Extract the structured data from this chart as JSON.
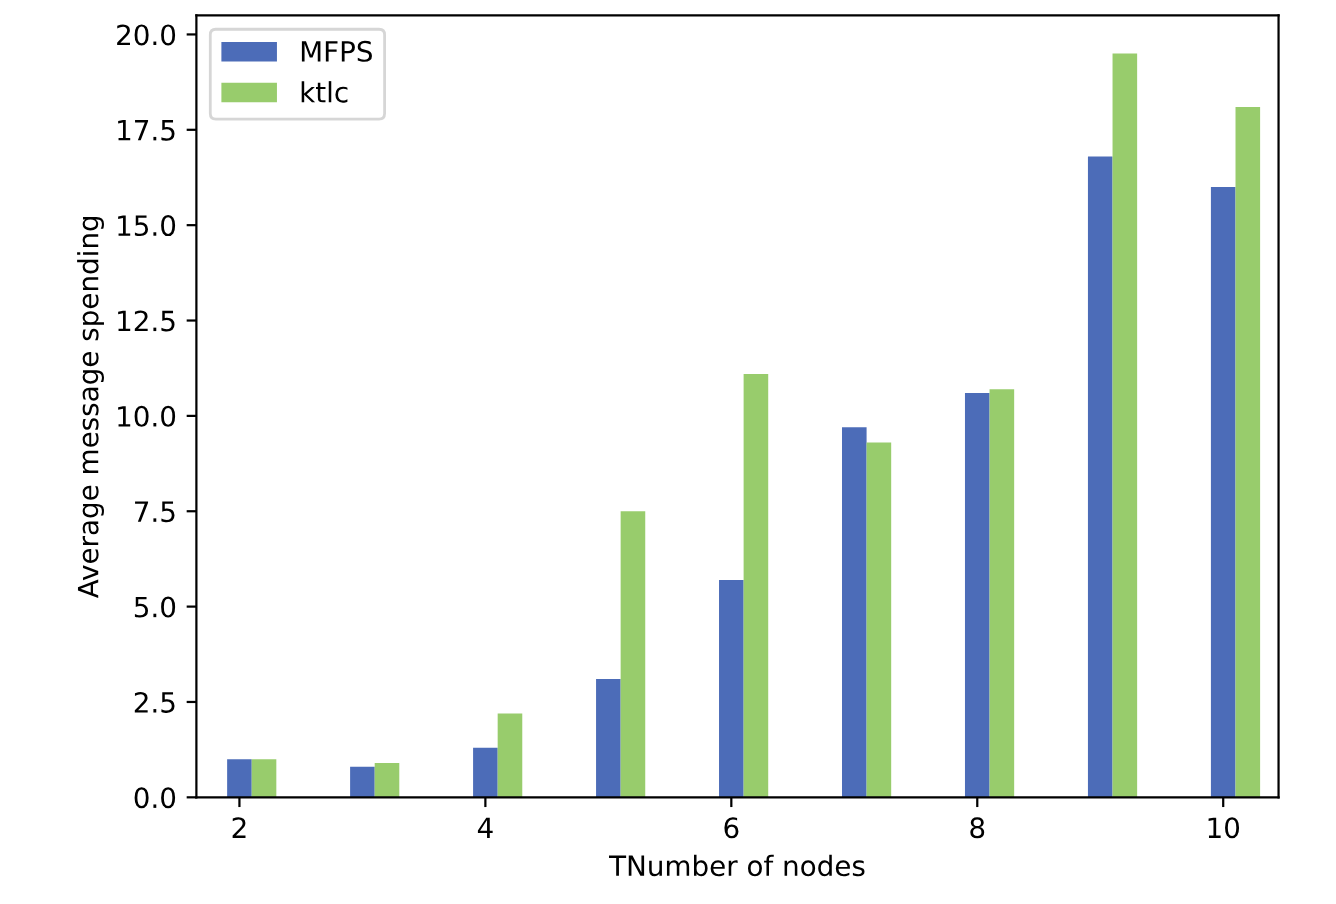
{
  "chart_data": {
    "type": "bar",
    "xlabel": "TNumber of nodes",
    "ylabel": "Average message spending",
    "x": [
      2,
      3,
      4,
      5,
      6,
      7,
      8,
      9,
      10
    ],
    "series": [
      {
        "name": "MFPS",
        "color": "#4c6cb8",
        "values": [
          1.0,
          0.8,
          1.3,
          3.1,
          5.7,
          9.7,
          10.6,
          16.8,
          16.0
        ]
      },
      {
        "name": "ktlc",
        "color": "#98cc6c",
        "values": [
          1.0,
          0.9,
          2.2,
          7.5,
          11.1,
          9.3,
          10.7,
          19.5,
          18.1
        ]
      }
    ],
    "xlim": [
      1.65,
      10.45
    ],
    "xticks": [
      2,
      4,
      6,
      8,
      10
    ],
    "ylim": [
      0,
      20.5
    ],
    "yticks": [
      {
        "value": 0,
        "label": "0.0"
      },
      {
        "value": 2.5,
        "label": "2.5"
      },
      {
        "value": 5,
        "label": "5.0"
      },
      {
        "value": 7.5,
        "label": "7.5"
      },
      {
        "value": 10,
        "label": "10.0"
      },
      {
        "value": 12.5,
        "label": "12.5"
      },
      {
        "value": 15,
        "label": "15.0"
      },
      {
        "value": 17.5,
        "label": "17.5"
      },
      {
        "value": 20,
        "label": "20.0"
      }
    ],
    "grid": false,
    "legend": "top left"
  }
}
